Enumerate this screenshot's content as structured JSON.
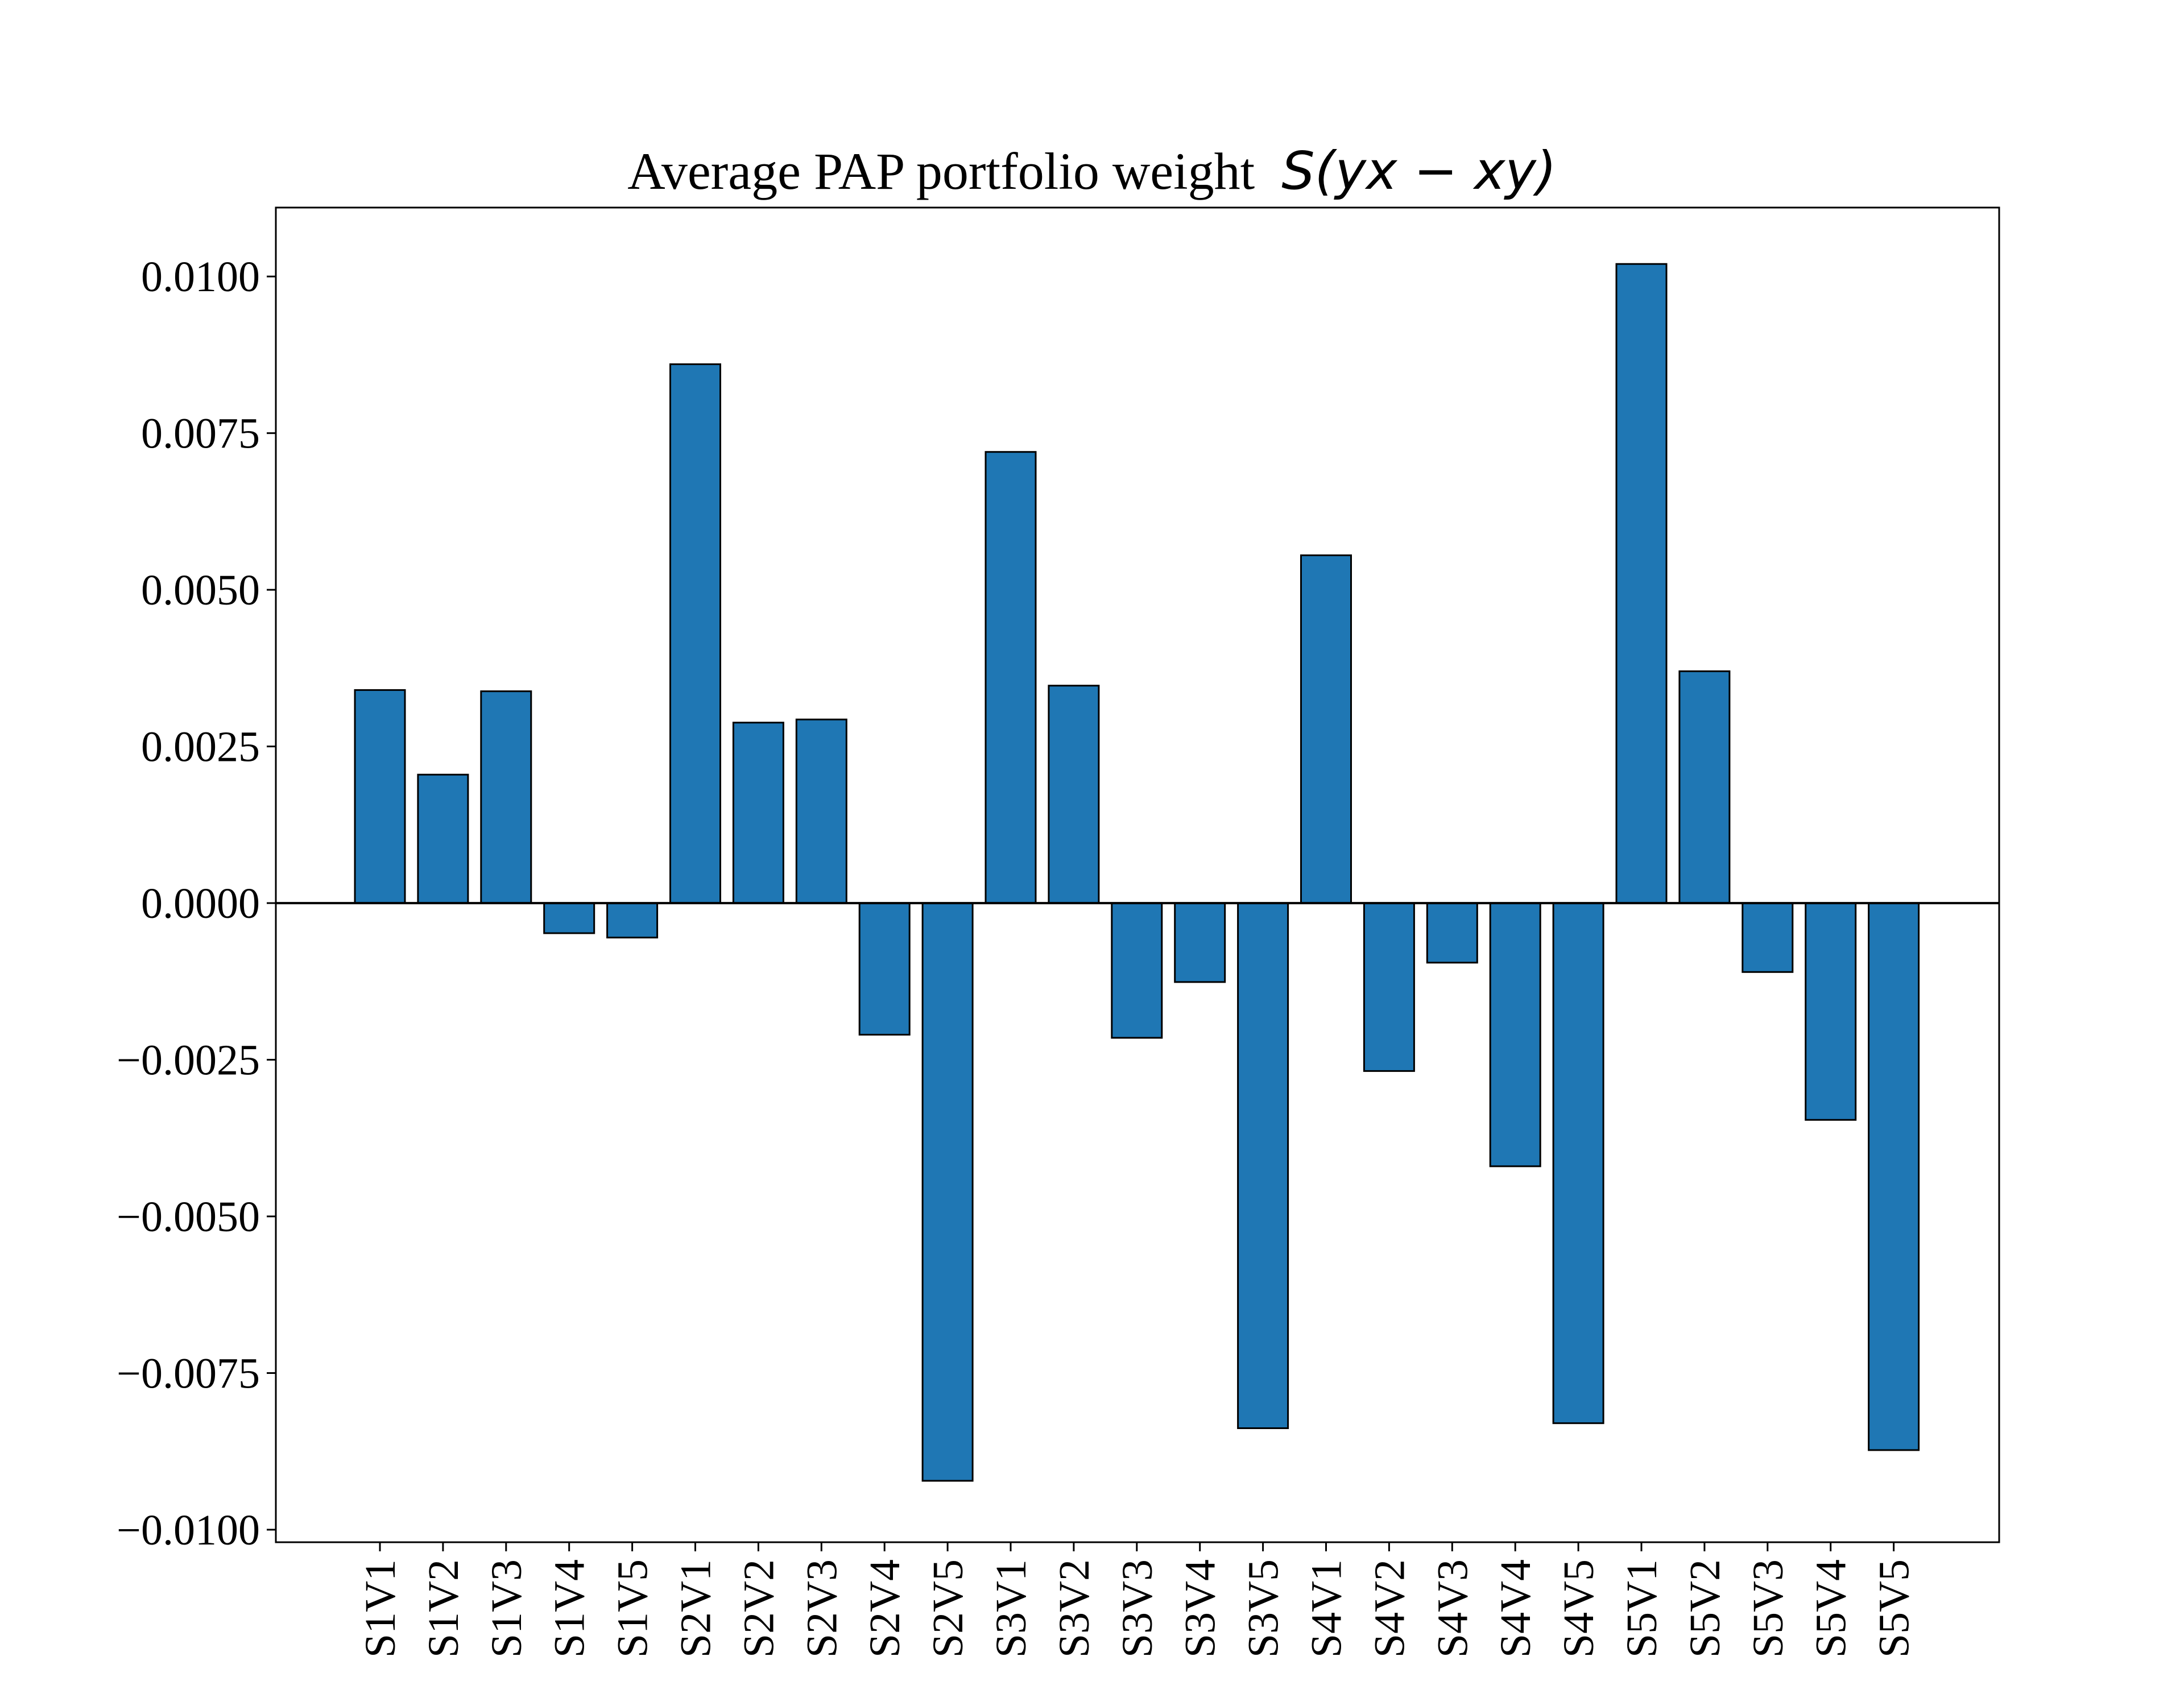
{
  "chart_data": {
    "type": "bar",
    "title": "Average PAP portfolio weight",
    "title_math": "S(yx − xy)",
    "xlabel": "",
    "ylabel": "",
    "categories": [
      "S1V1",
      "S1V2",
      "S1V3",
      "S1V4",
      "S1V5",
      "S2V1",
      "S2V2",
      "S2V3",
      "S2V4",
      "S2V5",
      "S3V1",
      "S3V2",
      "S3V3",
      "S3V4",
      "S3V5",
      "S4V1",
      "S4V2",
      "S4V3",
      "S4V4",
      "S4V5",
      "S5V1",
      "S5V2",
      "S5V3",
      "S5V4",
      "S5V5"
    ],
    "values": [
      0.0034,
      0.00205,
      0.00338,
      -0.00048,
      -0.00055,
      0.0086,
      0.00288,
      0.00293,
      -0.0021,
      -0.00922,
      0.0072,
      0.00347,
      -0.00215,
      -0.00126,
      -0.00838,
      0.00555,
      -0.00268,
      -0.00095,
      -0.0042,
      -0.0083,
      0.0102,
      0.0037,
      -0.0011,
      -0.00346,
      -0.00873
    ],
    "ylim": [
      -0.0102,
      0.0111
    ],
    "yticks": [
      {
        "value": 0.01,
        "label": "0.0100"
      },
      {
        "value": 0.0075,
        "label": "0.0075"
      },
      {
        "value": 0.005,
        "label": "0.0050"
      },
      {
        "value": 0.0025,
        "label": "0.0025"
      },
      {
        "value": 0.0,
        "label": "0.0000"
      },
      {
        "value": -0.0025,
        "label": "−0.0025"
      },
      {
        "value": -0.005,
        "label": "−0.0050"
      },
      {
        "value": -0.0075,
        "label": "−0.0075"
      },
      {
        "value": -0.01,
        "label": "−0.0100"
      }
    ],
    "bar_color": "#1f77b4",
    "edge_color": "#000000",
    "grid": false,
    "zero_line": true
  }
}
